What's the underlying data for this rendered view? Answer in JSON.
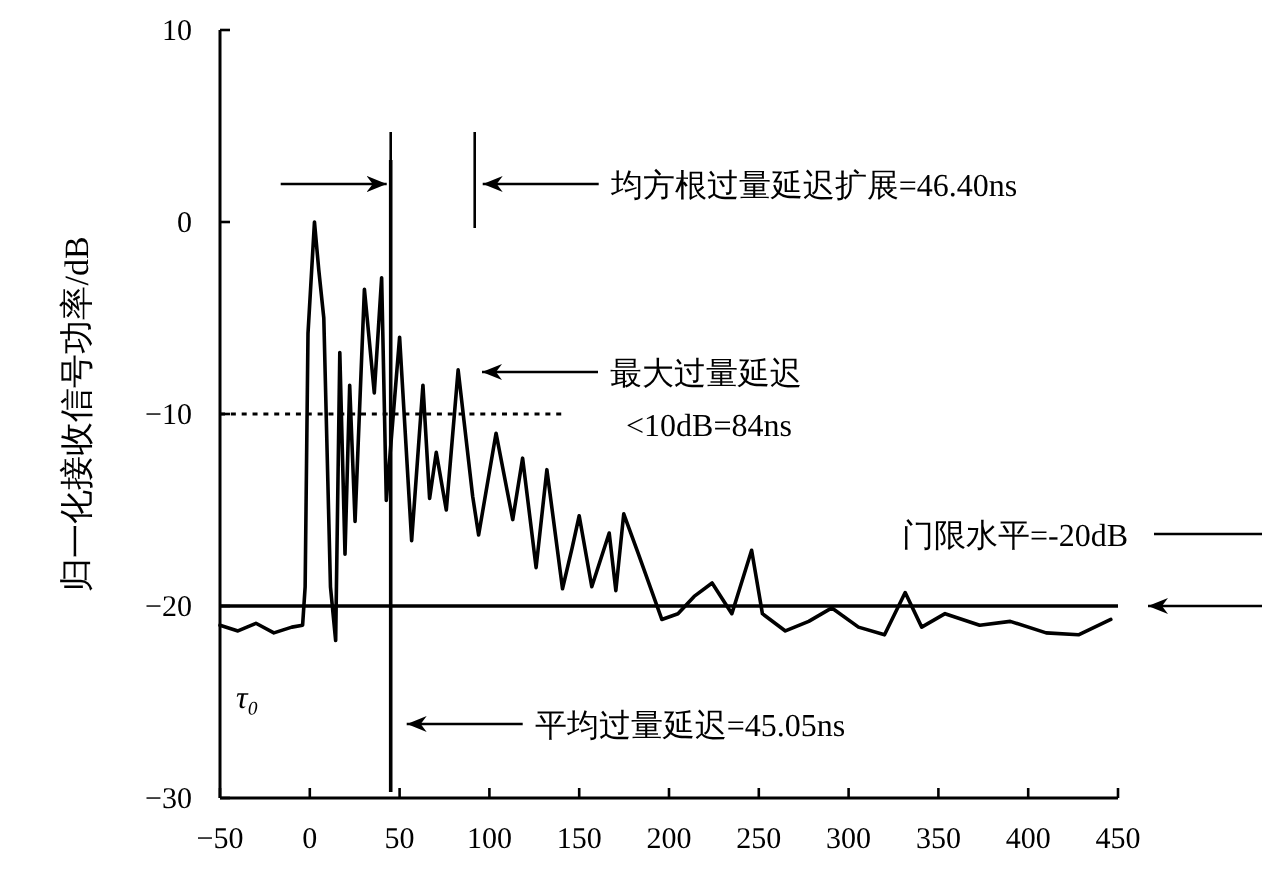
{
  "chart_data": {
    "type": "line",
    "ylabel": "归一化接收信号功率/dB",
    "xlim": [
      -50,
      450
    ],
    "ylim": [
      -30,
      10
    ],
    "xticks": [
      -50,
      0,
      50,
      100,
      150,
      200,
      250,
      300,
      350,
      400,
      450
    ],
    "yticks": [
      -30,
      -20,
      -10,
      0,
      10
    ],
    "series": [
      {
        "color": "#000000",
        "x": [
          -50,
          -40,
          -30,
          -20,
          -10,
          -4,
          -2.6,
          -1,
          2.6,
          5,
          7.8,
          11.5,
          14.4,
          16.7,
          19.6,
          22.2,
          25.2,
          30.4,
          35.9,
          40,
          42.6,
          50,
          56.7,
          63,
          66.7,
          70.4,
          76,
          82.6,
          90.7,
          94,
          103.7,
          113,
          118.5,
          126,
          132,
          140.7,
          146,
          150,
          157,
          166.7,
          170.4,
          174.8,
          183,
          196,
          205,
          214,
          224,
          235,
          246,
          252,
          264.8,
          277.8,
          290.7,
          305.5,
          320,
          331.5,
          340.7,
          353.7,
          373,
          390,
          410,
          428,
          446
        ],
        "values": [
          -21,
          -21.3,
          -20.9,
          -21.4,
          -21.1,
          -21,
          -19,
          -5.8,
          0,
          -2.5,
          -5,
          -19,
          -21.8,
          -6.8,
          -17.3,
          -8.5,
          -15.6,
          -3.5,
          -8.9,
          -2.9,
          -14.5,
          -6,
          -16.6,
          -8.5,
          -14.4,
          -12,
          -15,
          -7.7,
          -14.3,
          -16.3,
          -11,
          -15.5,
          -12.3,
          -18,
          -12.9,
          -19.1,
          -17,
          -15.3,
          -19,
          -16.2,
          -19.2,
          -15.2,
          -17.3,
          -20.7,
          -20.4,
          -19.5,
          -18.8,
          -20.4,
          -17.1,
          -20.4,
          -21.3,
          -20.8,
          -20.1,
          -21.1,
          -21.5,
          -19.3,
          -21.1,
          -20.4,
          -21,
          -20.8,
          -21.4,
          -21.5,
          -20.7
        ]
      },
      {
        "color": "#000000",
        "line_style": "dotted",
        "x": [
          -50,
          140
        ],
        "values": [
          -10,
          -10
        ]
      }
    ],
    "ref_lines": [
      {
        "axis": "y",
        "value": -20,
        "label": "门限水平=-20dB",
        "color": "#000000"
      },
      {
        "axis": "x",
        "value": 45.05,
        "color": "#000000"
      }
    ],
    "annotations": [
      "均方根过量延迟扩展=46.40ns",
      "最大过量延迟\n<10dB=84ns",
      "平均过量延迟=45.05ns",
      "τ₀"
    ]
  }
}
